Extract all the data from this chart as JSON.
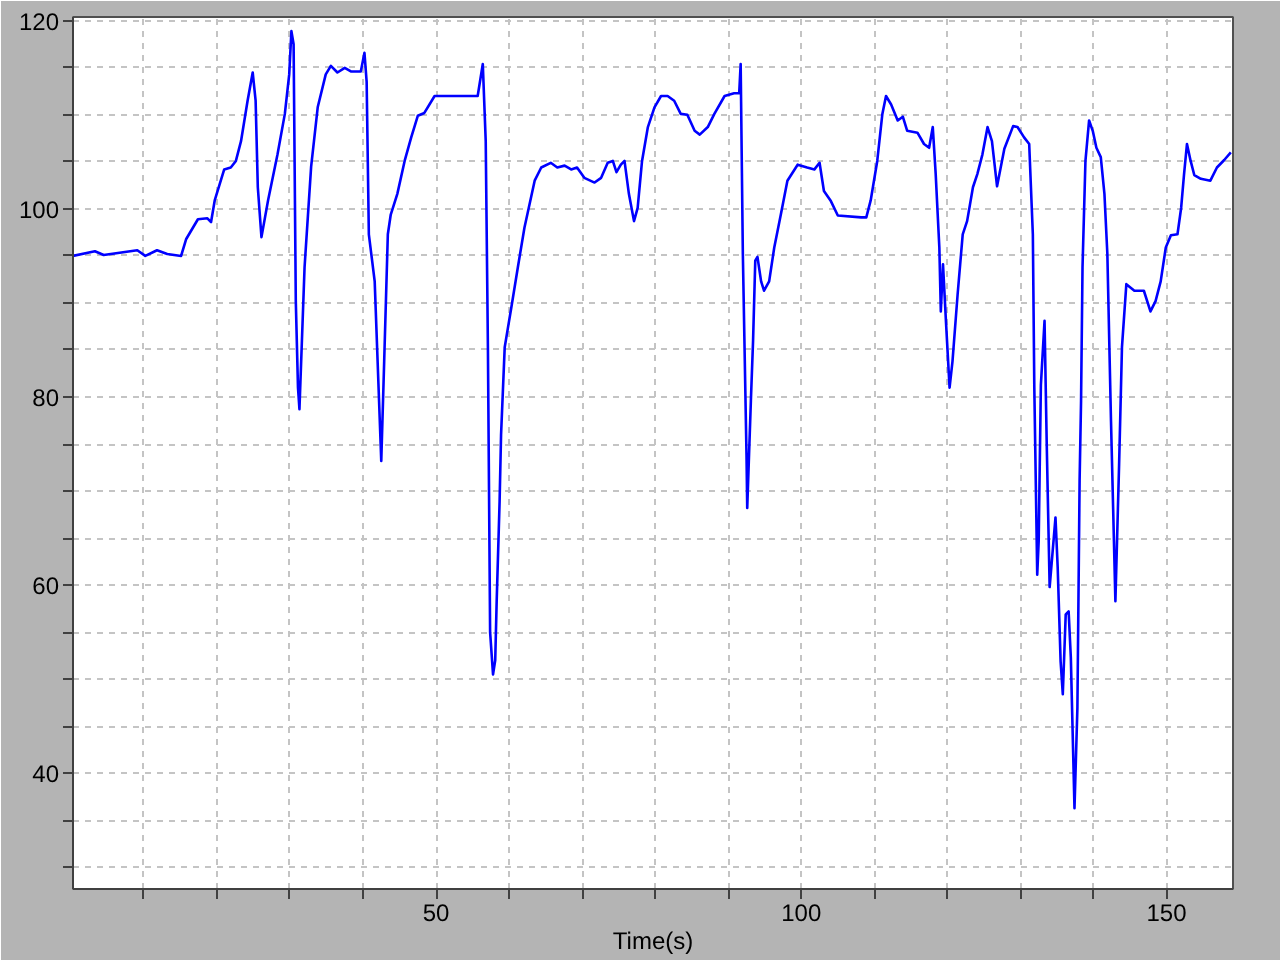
{
  "chart_data": {
    "type": "line",
    "xlabel": "Time(s)",
    "x": [
      0.3,
      3.3,
      4.5,
      9.1,
      10.2,
      11.8,
      13.2,
      15.1,
      15.8,
      17.4,
      18.7,
      19.2,
      19.7,
      21.0,
      21.9,
      22.6,
      23.3,
      24.2,
      24.9,
      25.3,
      25.6,
      26.1,
      27.0,
      28.3,
      29.3,
      29.9,
      30.2,
      30.5,
      30.8,
      31.1,
      31.3,
      32.0,
      32.9,
      33.8,
      34.9,
      35.6,
      36.5,
      37.5,
      38.4,
      39.7,
      40.2,
      40.5,
      40.8,
      41.6,
      42.0,
      42.5,
      42.9,
      43.4,
      43.8,
      44.7,
      45.7,
      46.6,
      47.5,
      48.4,
      49.8,
      55.7,
      56.4,
      56.8,
      57.1,
      57.4,
      57.8,
      58.1,
      58.3,
      58.7,
      58.9,
      59.4,
      60.3,
      61.2,
      62.1,
      63.5,
      64.4,
      65.7,
      66.6,
      67.6,
      68.5,
      69.3,
      70.3,
      71.7,
      72.6,
      73.5,
      74.2,
      74.7,
      75.3,
      75.8,
      76.4,
      77.1,
      77.6,
      78.2,
      79.0,
      79.9,
      80.8,
      81.7,
      82.6,
      83.5,
      84.4,
      85.4,
      86.1,
      87.2,
      88.1,
      89.5,
      90.8,
      91.5,
      91.7,
      92.0,
      92.5,
      92.6,
      93.1,
      93.4,
      93.7,
      94.0,
      94.5,
      94.9,
      95.6,
      96.3,
      97.2,
      98.1,
      99.5,
      100.8,
      101.8,
      102.5,
      103.1,
      104.0,
      105.0,
      108.2,
      108.9,
      109.5,
      110.4,
      111.1,
      111.6,
      112.3,
      113.2,
      113.9,
      114.5,
      115.9,
      116.8,
      117.5,
      118.0,
      118.4,
      118.9,
      119.1,
      119.4,
      119.8,
      120.3,
      120.7,
      121.4,
      122.1,
      122.7,
      123.5,
      124.1,
      124.8,
      125.5,
      126.1,
      126.8,
      127.3,
      127.8,
      129.0,
      129.6,
      130.5,
      131.2,
      131.7,
      131.9,
      132.3,
      132.5,
      132.8,
      133.3,
      133.6,
      134.0,
      134.8,
      135.1,
      135.5,
      135.8,
      136.2,
      136.6,
      136.9,
      137.2,
      137.4,
      137.8,
      138.1,
      138.3,
      138.5,
      138.9,
      139.4,
      139.9,
      140.4,
      141.0,
      141.5,
      141.9,
      142.4,
      142.8,
      143.0,
      143.5,
      143.9,
      144.5,
      145.6,
      146.9,
      147.8,
      148.5,
      149.2,
      149.9,
      150.6,
      151.5,
      152.0,
      152.4,
      152.8,
      153.3,
      153.8,
      154.7,
      156.0,
      156.9,
      157.9,
      158.8
    ],
    "series": [
      {
        "color": "#0000ff",
        "values": [
          95.0,
          95.5,
          95.1,
          95.6,
          95.0,
          95.6,
          95.2,
          95.0,
          96.8,
          98.9,
          99.0,
          98.6,
          100.9,
          104.2,
          104.4,
          105.1,
          107.2,
          111.5,
          114.5,
          111.5,
          102.3,
          97.0,
          100.9,
          105.8,
          110.1,
          114.3,
          118.9,
          117.5,
          90.2,
          81.0,
          78.7,
          93.8,
          104.5,
          110.8,
          114.3,
          115.2,
          114.5,
          115.0,
          114.6,
          114.6,
          116.6,
          113.5,
          97.3,
          92.3,
          83.8,
          73.2,
          83.8,
          97.3,
          99.4,
          101.6,
          105.1,
          107.6,
          109.9,
          110.2,
          112.0,
          112.0,
          115.4,
          107.2,
          85.3,
          55.0,
          50.5,
          52.0,
          58.3,
          68.9,
          76.0,
          85.3,
          89.5,
          93.8,
          98.0,
          103.0,
          104.4,
          104.9,
          104.4,
          104.6,
          104.2,
          104.4,
          103.3,
          102.8,
          103.3,
          104.9,
          105.1,
          103.9,
          104.7,
          105.1,
          101.6,
          98.7,
          100.1,
          105.1,
          108.7,
          110.8,
          112.0,
          112.0,
          111.5,
          110.1,
          110.0,
          108.3,
          107.9,
          108.7,
          110.1,
          112.0,
          112.3,
          112.3,
          115.4,
          95.2,
          73.9,
          68.2,
          79.6,
          86.0,
          94.5,
          94.9,
          92.3,
          91.3,
          92.3,
          95.9,
          99.4,
          103.0,
          104.7,
          104.4,
          104.2,
          104.9,
          101.9,
          100.9,
          99.3,
          99.1,
          99.1,
          100.9,
          105.1,
          110.1,
          112.0,
          111.1,
          109.4,
          109.8,
          108.3,
          108.1,
          106.9,
          106.5,
          108.7,
          103.7,
          95.9,
          89.1,
          94.1,
          88.1,
          81.0,
          83.8,
          90.9,
          97.3,
          98.7,
          102.3,
          103.7,
          105.8,
          108.7,
          107.2,
          102.4,
          104.4,
          106.4,
          108.8,
          108.7,
          107.6,
          106.9,
          97.3,
          81.0,
          61.1,
          64.7,
          81.3,
          88.1,
          75.0,
          59.8,
          67.2,
          61.9,
          51.9,
          48.4,
          56.9,
          57.2,
          52.3,
          42.7,
          36.3,
          47.0,
          71.1,
          79.6,
          93.8,
          105.1,
          109.4,
          108.3,
          106.5,
          105.5,
          101.6,
          95.2,
          77.4,
          64.7,
          58.3,
          72.6,
          85.3,
          92.0,
          91.3,
          91.3,
          89.1,
          90.2,
          92.3,
          95.9,
          97.2,
          97.3,
          100.1,
          103.7,
          106.9,
          105.1,
          103.6,
          103.2,
          103.0,
          104.4,
          105.2,
          106.0
        ]
      }
    ],
    "xlim": [
      0.3,
      159.1
    ],
    "ylim": [
      27.7,
      120.4
    ],
    "xticks": [
      {
        "value": 10,
        "label": null
      },
      {
        "value": 20,
        "label": null
      },
      {
        "value": 30,
        "label": null
      },
      {
        "value": 40,
        "label": null
      },
      50,
      {
        "value": 60,
        "label": null
      },
      {
        "value": 70,
        "label": null
      },
      {
        "value": 80,
        "label": null
      },
      {
        "value": 90,
        "label": null
      },
      100,
      {
        "value": 110,
        "label": null
      },
      {
        "value": 120,
        "label": null
      },
      {
        "value": 130,
        "label": null
      },
      {
        "value": 140,
        "label": null
      },
      150
    ],
    "yticks": [
      {
        "value": 30,
        "label": null
      },
      {
        "value": 35,
        "label": null
      },
      40,
      {
        "value": 45,
        "label": null
      },
      {
        "value": 50,
        "label": null
      },
      {
        "value": 55,
        "label": null
      },
      60,
      {
        "value": 65,
        "label": null
      },
      {
        "value": 70,
        "label": null
      },
      {
        "value": 75,
        "label": null
      },
      80,
      {
        "value": 85,
        "label": null
      },
      {
        "value": 90,
        "label": null
      },
      {
        "value": 95,
        "label": null
      },
      100,
      {
        "value": 105,
        "label": null
      },
      {
        "value": 110,
        "label": null
      },
      {
        "value": 115,
        "label": null
      },
      120
    ],
    "grid": true,
    "line_style": "solid"
  }
}
